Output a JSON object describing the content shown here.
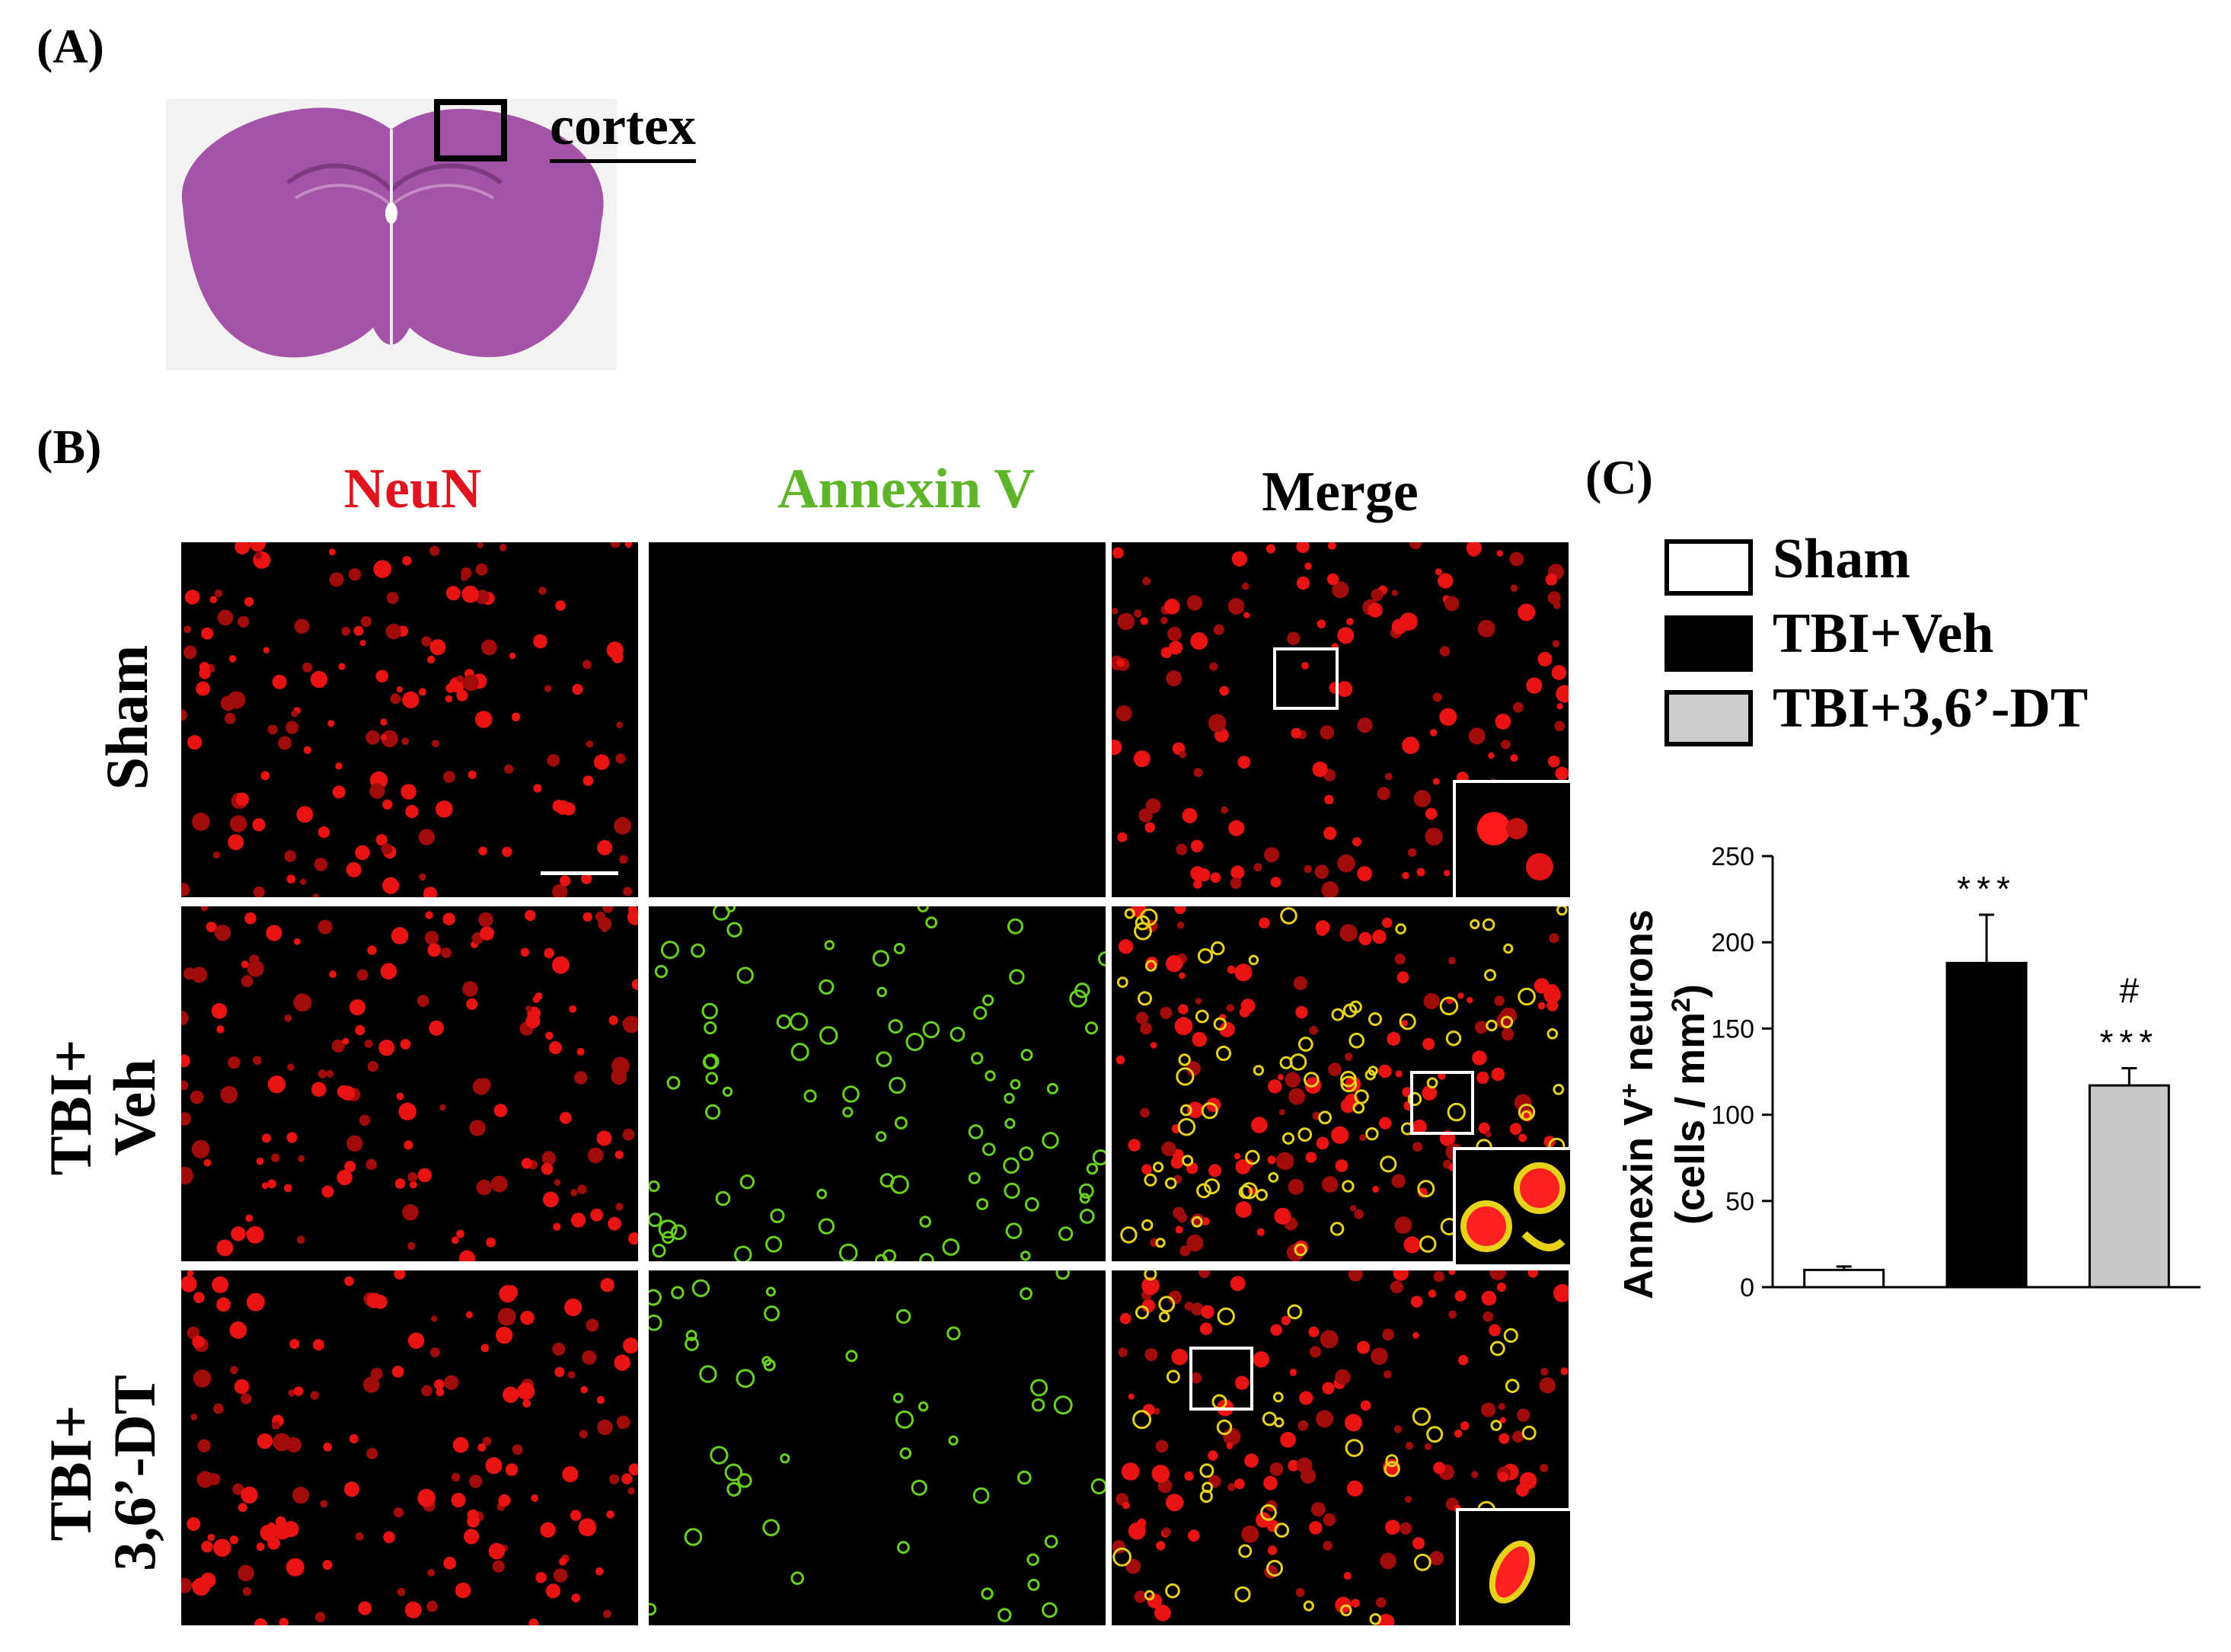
{
  "panel_labels": {
    "a": "(A)",
    "b": "(B)",
    "c": "(C)"
  },
  "panel_a": {
    "region_label": "cortex",
    "slice_color": "#a454a6"
  },
  "panel_b": {
    "columns": [
      {
        "label": "NeuN",
        "color": "#e0141e"
      },
      {
        "label": "Annexin V",
        "color": "#5fb52a"
      },
      {
        "label": "Merge",
        "color": "#000000"
      }
    ],
    "rows": [
      {
        "line1": "Sham",
        "line2": ""
      },
      {
        "line1": "TBI+",
        "line2": "Veh"
      },
      {
        "line1": "TBI+",
        "line2": "3,6’-DT"
      }
    ]
  },
  "legend": [
    {
      "label": "Sham",
      "fill": "#ffffff"
    },
    {
      "label": "TBI+Veh",
      "fill": "#000000"
    },
    {
      "label": "TBI+3,6’-DT",
      "fill": "#cccccc"
    }
  ],
  "chart_data": {
    "type": "bar",
    "categories": [
      "Sham",
      "TBI+Veh",
      "TBI+3,6’-DT"
    ],
    "values": [
      10,
      188,
      117
    ],
    "errors": [
      2,
      28,
      10
    ],
    "colors": [
      "#ffffff",
      "#000000",
      "#c8c8c8"
    ],
    "significance": [
      "",
      "***",
      "***"
    ],
    "significance_secondary": [
      "",
      "",
      "#"
    ],
    "ylabel_line1": "Annexin V",
    "ylabel_sup1": "+",
    "ylabel_line1_end": " neurons",
    "ylabel_line2": "(cells / mm",
    "ylabel_sup2": "2",
    "ylabel_line2_end": ")",
    "ylim": [
      0,
      250
    ],
    "yticks": [
      "0",
      "50",
      "100",
      "150",
      "200",
      "250"
    ]
  }
}
